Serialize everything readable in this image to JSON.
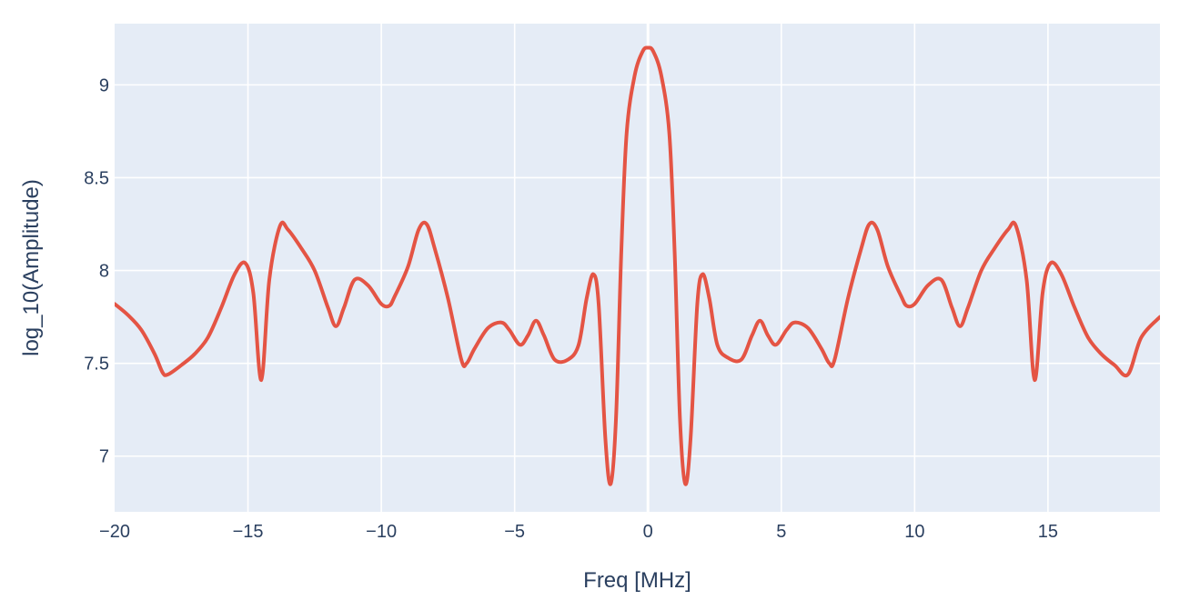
{
  "chart_data": {
    "type": "line",
    "title": "",
    "xlabel": "Freq [MHz]",
    "ylabel": "log_10(Amplitude)",
    "xlim": [
      -20,
      19.2
    ],
    "ylim": [
      6.7,
      9.33
    ],
    "x_ticks": [
      -20,
      -15,
      -10,
      -5,
      0,
      5,
      10,
      15
    ],
    "x_tick_labels": [
      "−20",
      "−15",
      "−10",
      "−5",
      "0",
      "5",
      "10",
      "15"
    ],
    "y_ticks": [
      7,
      7.5,
      8,
      8.5,
      9
    ],
    "y_tick_labels": [
      "7",
      "7.5",
      "8",
      "8.5",
      "9"
    ],
    "grid": true,
    "legend": false,
    "colors": {
      "plot_bg": "#e5ecf6",
      "paper_bg": "#ffffff",
      "grid": "#ffffff",
      "line": "#e45444",
      "text": "#2a3f5f"
    },
    "series": [
      {
        "color": "#e45444",
        "x": [
          -20,
          -19.5,
          -19,
          -18.5,
          -18.2,
          -18,
          -17.5,
          -17,
          -16.5,
          -16,
          -15.5,
          -15.1,
          -14.8,
          -14.5,
          -14.2,
          -13.8,
          -13.5,
          -13,
          -12.5,
          -12,
          -11.7,
          -11.4,
          -11,
          -10.5,
          -10,
          -9.7,
          -9.5,
          -9,
          -8.6,
          -8.3,
          -8,
          -7.5,
          -7,
          -6.8,
          -6.5,
          -6,
          -5.5,
          -5.2,
          -4.8,
          -4.5,
          -4.2,
          -3.9,
          -3.5,
          -3,
          -2.6,
          -2.3,
          -2.05,
          -1.85,
          -1.6,
          -1.4,
          -1.2,
          -1,
          -0.8,
          -0.5,
          -0.2,
          0,
          0.2,
          0.5,
          0.8,
          1,
          1.2,
          1.4,
          1.6,
          1.85,
          2.05,
          2.3,
          2.6,
          3,
          3.5,
          3.9,
          4.2,
          4.5,
          4.8,
          5.2,
          5.5,
          6,
          6.5,
          6.8,
          7,
          7.5,
          8,
          8.3,
          8.6,
          9,
          9.5,
          9.7,
          10,
          10.5,
          11,
          11.4,
          11.7,
          12,
          12.5,
          13,
          13.5,
          13.8,
          14.2,
          14.5,
          14.8,
          15.1,
          15.5,
          16,
          16.5,
          17,
          17.5,
          18,
          18.5,
          19.2
        ],
        "y": [
          7.82,
          7.76,
          7.68,
          7.55,
          7.45,
          7.44,
          7.49,
          7.55,
          7.64,
          7.8,
          7.98,
          8.04,
          7.88,
          7.41,
          7.95,
          8.24,
          8.22,
          8.12,
          8.0,
          7.8,
          7.7,
          7.8,
          7.95,
          7.92,
          7.82,
          7.81,
          7.86,
          8.02,
          8.22,
          8.25,
          8.12,
          7.85,
          7.52,
          7.5,
          7.58,
          7.69,
          7.72,
          7.68,
          7.6,
          7.65,
          7.73,
          7.65,
          7.52,
          7.52,
          7.6,
          7.85,
          7.98,
          7.82,
          7.1,
          6.85,
          7.2,
          8.1,
          8.74,
          9.05,
          9.18,
          9.2,
          9.18,
          9.05,
          8.74,
          8.1,
          7.2,
          6.85,
          7.1,
          7.82,
          7.98,
          7.85,
          7.6,
          7.53,
          7.52,
          7.65,
          7.73,
          7.65,
          7.6,
          7.68,
          7.72,
          7.69,
          7.58,
          7.5,
          7.52,
          7.85,
          8.12,
          8.25,
          8.22,
          8.02,
          7.86,
          7.81,
          7.82,
          7.92,
          7.95,
          7.8,
          7.7,
          7.8,
          8.0,
          8.12,
          8.22,
          8.24,
          7.95,
          7.41,
          7.88,
          8.04,
          7.98,
          7.8,
          7.64,
          7.55,
          7.49,
          7.44,
          7.64,
          7.75
        ]
      }
    ]
  }
}
